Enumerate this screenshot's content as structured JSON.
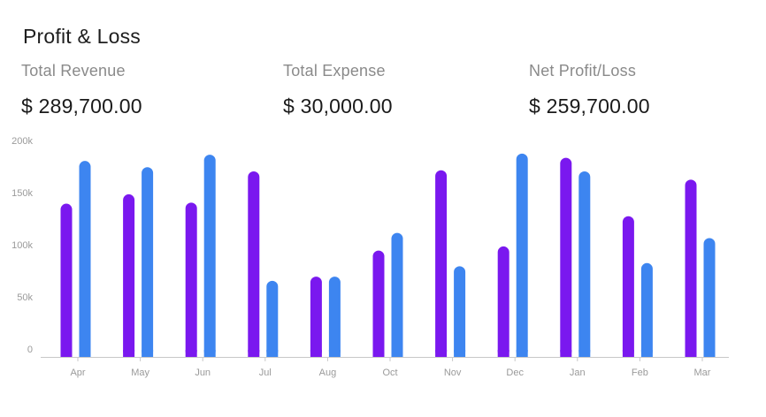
{
  "header": {
    "title": "Profit & Loss"
  },
  "stats": [
    {
      "label": "Total Revenue",
      "value": "$ 289,700.00"
    },
    {
      "label": "Total Expense",
      "value": "$ 30,000.00"
    },
    {
      "label": "Net Profit/Loss",
      "value": "$ 259,700.00"
    }
  ],
  "colors": {
    "series_a": "#7a18ef",
    "series_b": "#3d85f0",
    "axis": "#c8c8c8",
    "tick_text": "#9a9a9a"
  },
  "chart_data": {
    "type": "bar",
    "categories": [
      "Apr",
      "May",
      "Jun",
      "Jul",
      "Aug",
      "Oct",
      "Nov",
      "Dec",
      "Jan",
      "Feb",
      "Mar"
    ],
    "series": [
      {
        "values": [
          147000,
          156000,
          148000,
          178000,
          77000,
          102000,
          179000,
          106000,
          191000,
          135000,
          170000
        ]
      },
      {
        "values": [
          188000,
          182000,
          194000,
          73000,
          77000,
          119000,
          87000,
          195000,
          178000,
          90000,
          114000
        ]
      }
    ],
    "yticks": [
      0,
      50000,
      100000,
      150000,
      200000
    ],
    "ytick_labels": [
      "0",
      "50k",
      "100k",
      "150k",
      "200k"
    ],
    "ylim": [
      0,
      200000
    ],
    "grid": false,
    "legend": "none"
  }
}
